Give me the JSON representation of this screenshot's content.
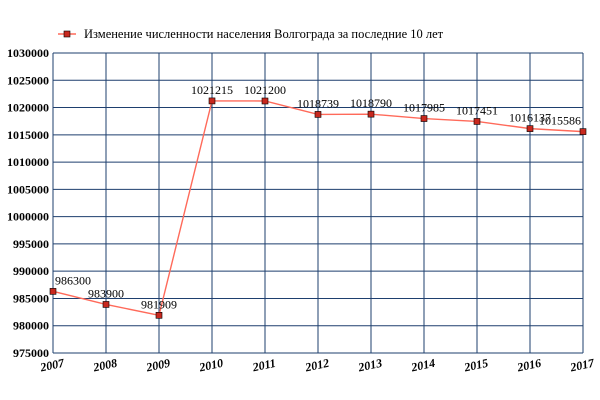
{
  "chart_data": {
    "type": "line",
    "title": "",
    "xlabel": "",
    "ylabel": "",
    "x": [
      "2007",
      "2008",
      "2009",
      "2010",
      "2011",
      "2012",
      "2013",
      "2014",
      "2015",
      "2016",
      "2017"
    ],
    "series": [
      {
        "name": "Изменение численности населения Волгограда за последние 10 лет",
        "values": [
          986300,
          983900,
          981909,
          1021215,
          1021200,
          1018739,
          1018790,
          1017985,
          1017451,
          1016137,
          1015586
        ],
        "labels": [
          "986300",
          "983900",
          "981909",
          "1021215",
          "1021200",
          "1018739",
          "1018790",
          "1017985",
          "1017451",
          "1016137",
          "1015586"
        ],
        "color": "#ff6a5a",
        "marker_color": "#c8281e"
      }
    ],
    "ylim": [
      975000,
      1030000
    ],
    "yticks": [
      975000,
      980000,
      985000,
      990000,
      995000,
      1000000,
      1005000,
      1010000,
      1015000,
      1020000,
      1025000,
      1030000
    ],
    "ytick_labels": [
      "975000",
      "980000",
      "985000",
      "990000",
      "995000",
      "1000000",
      "1005000",
      "1010000",
      "1015000",
      "1020000",
      "1025000",
      "1030000"
    ],
    "grid": true,
    "grid_color": "#1e3f6e",
    "legend": "top-left"
  }
}
